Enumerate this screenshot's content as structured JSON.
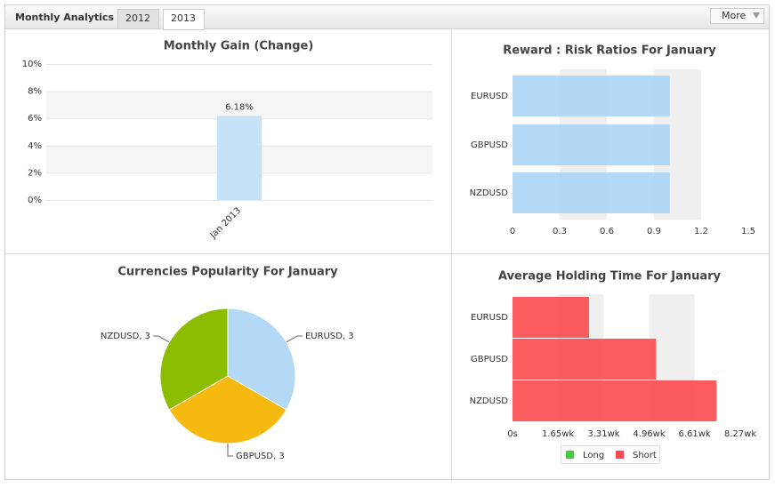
{
  "header": {
    "title": "Monthly Analytics",
    "tabs": [
      "2012",
      "2013"
    ],
    "menu": "More"
  },
  "chart_data": [
    {
      "type": "bar",
      "title": "Monthly Gain (Change)",
      "categories": [
        "Jan 2013"
      ],
      "values": [
        6.18
      ],
      "value_labels": [
        "6.18%"
      ],
      "color": "#c6e2f7",
      "ylim": [
        0,
        10
      ],
      "yticks": [
        {
          "value": 0,
          "label": "0%"
        },
        {
          "value": 2,
          "label": "2%"
        },
        {
          "value": 4,
          "label": "4%"
        },
        {
          "value": 6,
          "label": "6%"
        },
        {
          "value": 8,
          "label": "8%"
        },
        {
          "value": 10,
          "label": "10%"
        }
      ],
      "grid": true
    },
    {
      "type": "hbar",
      "title": "Reward : Risk Ratios For January",
      "categories": [
        "EURUSD",
        "GBPUSD",
        "NZDUSD"
      ],
      "values": [
        1.0,
        1.0,
        1.0
      ],
      "color": "#a6d2f5",
      "xlim": [
        0,
        1.5
      ],
      "xticks": [
        0,
        0.3,
        0.6,
        0.9,
        1.2,
        1.5
      ],
      "grid": true
    },
    {
      "type": "pie",
      "title": "Currencies Popularity For January",
      "categories": [
        "EURUSD",
        "GBPUSD",
        "NZDUSD"
      ],
      "values": [
        3,
        3,
        3
      ],
      "value_labels": [
        "EURUSD, 3",
        "GBPUSD, 3",
        "NZDUSD, 3"
      ],
      "colors": [
        "#b3d9f7",
        "#f5b90f",
        "#8cbd00"
      ]
    },
    {
      "type": "hbar",
      "title": "Average Holding Time For January",
      "categories": [
        "EURUSD",
        "GBPUSD",
        "NZDUSD"
      ],
      "series": [
        {
          "name": "Long",
          "color": "#4cc742",
          "values": [
            0,
            0,
            0
          ]
        },
        {
          "name": "Short",
          "color": "#fa4a4f",
          "values": [
            2.78,
            5.21,
            7.41
          ]
        }
      ],
      "xlim": [
        0,
        8.27
      ],
      "xticks": [
        {
          "value": 0,
          "label": "0s"
        },
        {
          "value": 1.65,
          "label": "1.65wk"
        },
        {
          "value": 3.31,
          "label": "3.31wk"
        },
        {
          "value": 4.96,
          "label": "4.96wk"
        },
        {
          "value": 6.61,
          "label": "6.61wk"
        },
        {
          "value": 8.27,
          "label": "8.27wk"
        }
      ],
      "grid": true,
      "legend": "bottom"
    }
  ]
}
